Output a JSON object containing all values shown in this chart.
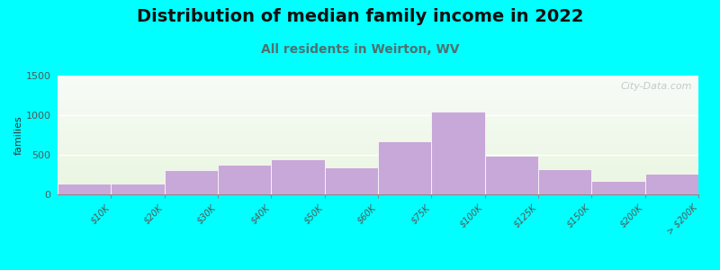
{
  "title": "Distribution of median family income in 2022",
  "subtitle": "All residents in Weirton, WV",
  "ylabel": "families",
  "categories": [
    "$10K",
    "$20K",
    "$30K",
    "$40K",
    "$50K",
    "$60K",
    "$75K",
    "$100K",
    "$125K",
    "$150K",
    "$200K",
    "> $200K"
  ],
  "values": [
    140,
    140,
    310,
    380,
    440,
    340,
    670,
    1040,
    490,
    320,
    165,
    260
  ],
  "bar_color": "#c8a8d8",
  "ylim": [
    0,
    1500
  ],
  "yticks": [
    0,
    500,
    1000,
    1500
  ],
  "background_color": "#00ffff",
  "title_fontsize": 14,
  "subtitle_fontsize": 10,
  "subtitle_color": "#507070",
  "watermark": "City-Data.com",
  "tick_label_fontsize": 7,
  "ylabel_fontsize": 8,
  "ytick_fontsize": 8
}
